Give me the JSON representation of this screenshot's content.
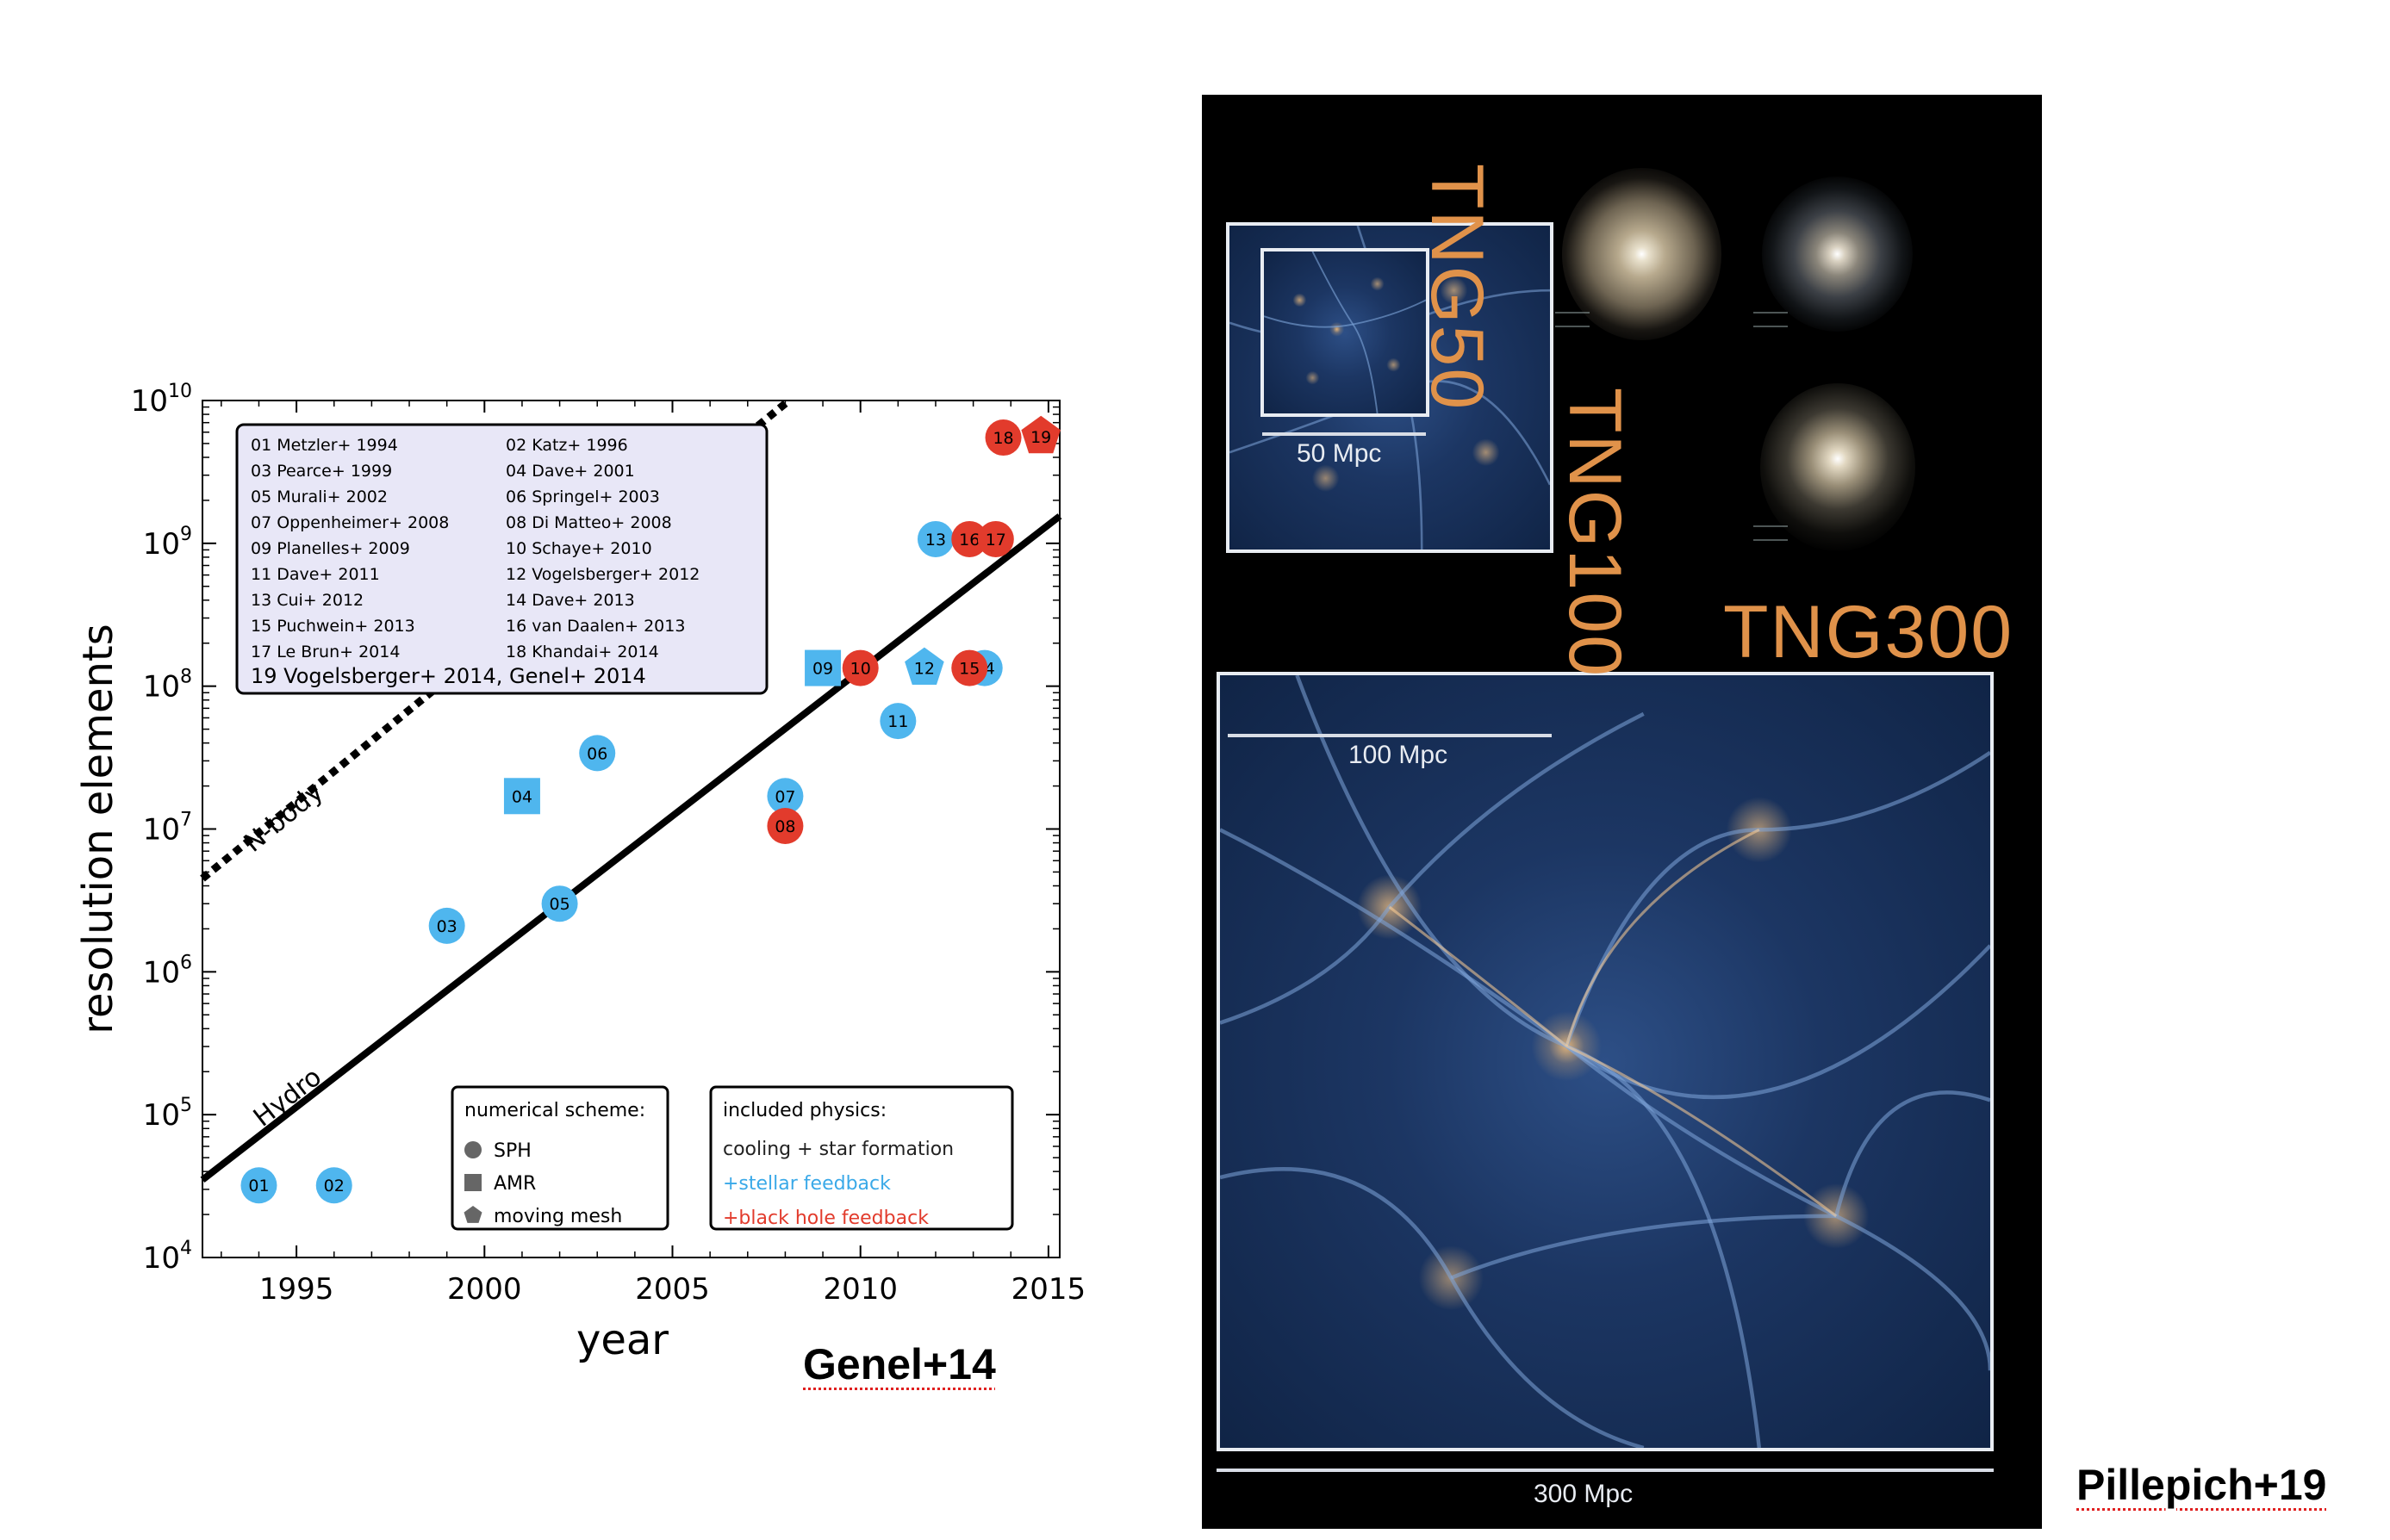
{
  "chart_data": {
    "type": "scatter",
    "title": "",
    "xlabel": "year",
    "ylabel": "resolution elements",
    "xlim": [
      1992.5,
      2015.3
    ],
    "ylim": [
      10000,
      10000000000
    ],
    "yscale": "log",
    "x_ticks": [
      1995,
      2000,
      2005,
      2010,
      2015
    ],
    "x_tick_labels": [
      "1995",
      "2000",
      "2005",
      "2010",
      "2015"
    ],
    "y_ticks": [
      10000,
      100000,
      1000000,
      10000000,
      100000000,
      1000000000,
      10000000000
    ],
    "y_tick_labels": [
      {
        "base": "10",
        "exp": "4"
      },
      {
        "base": "10",
        "exp": "5"
      },
      {
        "base": "10",
        "exp": "6"
      },
      {
        "base": "10",
        "exp": "7"
      },
      {
        "base": "10",
        "exp": "8"
      },
      {
        "base": "10",
        "exp": "9"
      },
      {
        "base": "10",
        "exp": "10"
      }
    ],
    "lines": [
      {
        "label": "N-body",
        "style": "dotted",
        "x": [
          1992.5,
          2008.1
        ],
        "y": [
          4500000,
          10000000000
        ]
      },
      {
        "label": "Hydro",
        "style": "solid",
        "x": [
          1992.5,
          2015.3
        ],
        "y": [
          35000,
          1550000000
        ]
      }
    ],
    "points": [
      {
        "id": "01",
        "x": 1994,
        "y": 32000,
        "scheme": "SPH",
        "physics": "stellar feedback"
      },
      {
        "id": "02",
        "x": 1996,
        "y": 32000,
        "scheme": "SPH",
        "physics": "stellar feedback"
      },
      {
        "id": "03",
        "x": 1999,
        "y": 2100000,
        "scheme": "SPH",
        "physics": "stellar feedback"
      },
      {
        "id": "04",
        "x": 2001,
        "y": 17000000,
        "scheme": "AMR",
        "physics": "stellar feedback"
      },
      {
        "id": "05",
        "x": 2002,
        "y": 3000000,
        "scheme": "SPH",
        "physics": "stellar feedback"
      },
      {
        "id": "06",
        "x": 2003,
        "y": 34000000,
        "scheme": "SPH",
        "physics": "stellar feedback"
      },
      {
        "id": "07",
        "x": 2008,
        "y": 17000000,
        "scheme": "SPH",
        "physics": "stellar feedback"
      },
      {
        "id": "08",
        "x": 2008,
        "y": 10500000,
        "scheme": "SPH",
        "physics": "black hole feedback"
      },
      {
        "id": "09",
        "x": 2009,
        "y": 134000000,
        "scheme": "AMR",
        "physics": "stellar feedback"
      },
      {
        "id": "10",
        "x": 2010,
        "y": 134000000,
        "scheme": "SPH",
        "physics": "black hole feedback"
      },
      {
        "id": "11",
        "x": 2011,
        "y": 57000000,
        "scheme": "SPH",
        "physics": "stellar feedback"
      },
      {
        "id": "12",
        "x": 2011.7,
        "y": 134000000,
        "scheme": "moving mesh",
        "physics": "stellar feedback"
      },
      {
        "id": "13",
        "x": 2012,
        "y": 1070000000,
        "scheme": "SPH",
        "physics": "stellar feedback"
      },
      {
        "id": "14",
        "x": 2013.3,
        "y": 134000000,
        "scheme": "SPH",
        "physics": "stellar feedback"
      },
      {
        "id": "15",
        "x": 2012.9,
        "y": 134000000,
        "scheme": "SPH",
        "physics": "black hole feedback"
      },
      {
        "id": "16",
        "x": 2012.9,
        "y": 1070000000,
        "scheme": "SPH",
        "physics": "black hole feedback"
      },
      {
        "id": "17",
        "x": 2013.6,
        "y": 1070000000,
        "scheme": "SPH",
        "physics": "black hole feedback"
      },
      {
        "id": "18",
        "x": 2013.8,
        "y": 5500000000,
        "scheme": "SPH",
        "physics": "black hole feedback"
      },
      {
        "id": "19",
        "x": 2014.8,
        "y": 5600000000,
        "scheme": "moving mesh",
        "physics": "black hole feedback"
      }
    ],
    "reference_legend": {
      "placement": "top-left",
      "entries": [
        "01 Metzler+ 1994",
        "02 Katz+ 1996",
        "03 Pearce+ 1999",
        "04 Dave+ 2001",
        "05 Murali+ 2002",
        "06 Springel+ 2003",
        "07 Oppenheimer+ 2008",
        "08 Di Matteo+ 2008",
        "09 Planelles+ 2009",
        "10 Schaye+ 2010",
        "11 Dave+ 2011",
        "12 Vogelsberger+ 2012",
        "13 Cui+ 2012",
        "14 Dave+ 2013",
        "15 Puchwein+ 2013",
        "16 van Daalen+ 2013",
        "17 Le Brun+ 2014",
        "18 Khandai+ 2014"
      ],
      "last_entry": "19 Vogelsberger+ 2014, Genel+ 2014"
    },
    "scheme_legend": {
      "placement": "bottom-center",
      "title": "numerical scheme:",
      "entries": [
        {
          "label": "SPH",
          "marker": "circle"
        },
        {
          "label": "AMR",
          "marker": "square"
        },
        {
          "label": "moving mesh",
          "marker": "pentagon"
        }
      ]
    },
    "physics_legend": {
      "placement": "bottom-right",
      "title": "included physics:",
      "entries": [
        {
          "label": "cooling + star formation",
          "color": "#222222"
        },
        {
          "label": "+stellar feedback",
          "color": "#3aa9e8"
        },
        {
          "label": "+black hole feedback",
          "color": "#e23b2c"
        }
      ]
    },
    "colors": {
      "stellar": "#4fb6ee",
      "black_hole": "#e23b2c",
      "legend_bg": "#e8e7f7"
    }
  },
  "captions": {
    "left": "Genel+14",
    "right": "Pillepich+19"
  },
  "simulation_panel": {
    "labels": {
      "tng50": "TNG50",
      "tng100": "TNG100",
      "tng300": "TNG300"
    },
    "scales": {
      "tng50": "50 Mpc",
      "tng100": "100 Mpc",
      "tng300": "300 Mpc"
    }
  }
}
